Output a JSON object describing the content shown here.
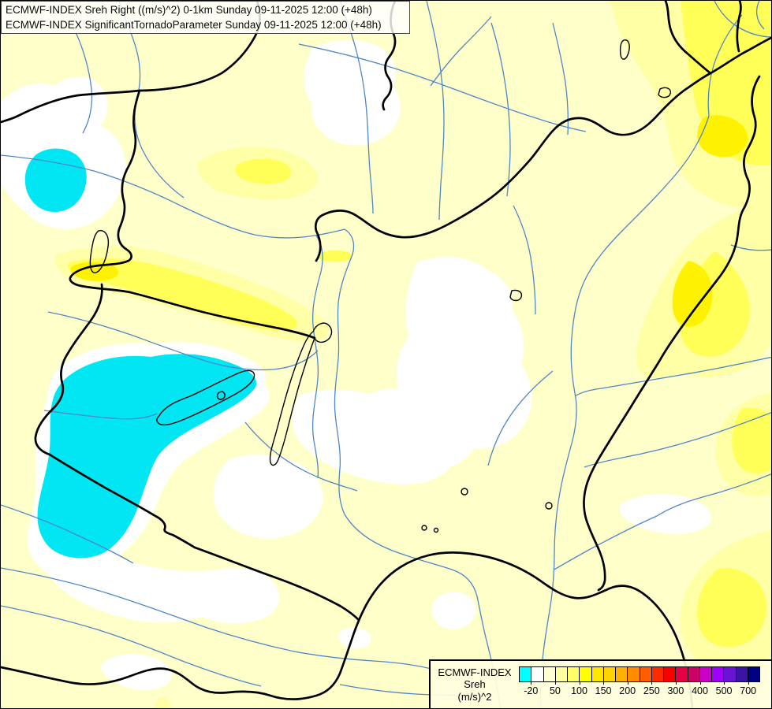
{
  "header": {
    "line1": "ECMWF-INDEX Sreh Right ((m/s)^2) 0-1km Sunday 09-11-2025 12:00 (+48h)",
    "line2": "ECMWF-INDEX SignificantTornadoParameter Sunday 09-11-2025 12:00 (+48h)"
  },
  "legend": {
    "product": "ECMWF-INDEX",
    "parameter": "Sreh",
    "units": "(m/s)^2",
    "tick_labels": [
      "-20",
      "50",
      "100",
      "150",
      "200",
      "250",
      "300",
      "400",
      "500",
      "700"
    ],
    "swatch_colors": [
      "#00ffff",
      "#ffffff",
      "#ffffd0",
      "#ffffa0",
      "#ffff6a",
      "#ffff00",
      "#ffe600",
      "#ffd200",
      "#ffb000",
      "#ff8c00",
      "#ff5c00",
      "#ff2a00",
      "#f80000",
      "#e60046",
      "#cc0066",
      "#c800c8",
      "#a000fa",
      "#6914d2",
      "#3c14a5",
      "#000082"
    ]
  },
  "map": {
    "region": "Hungary and surroundings",
    "colors": {
      "background": "#ffffc9",
      "band_light": "#ffffa6",
      "band_mid": "#ffff58",
      "band_strong": "#fff200",
      "below_zero_band": "#ffffff",
      "negative_band": "#00e6f2",
      "border": "#000000",
      "river": "#4f86c8",
      "lake_outline": "#000000"
    }
  }
}
